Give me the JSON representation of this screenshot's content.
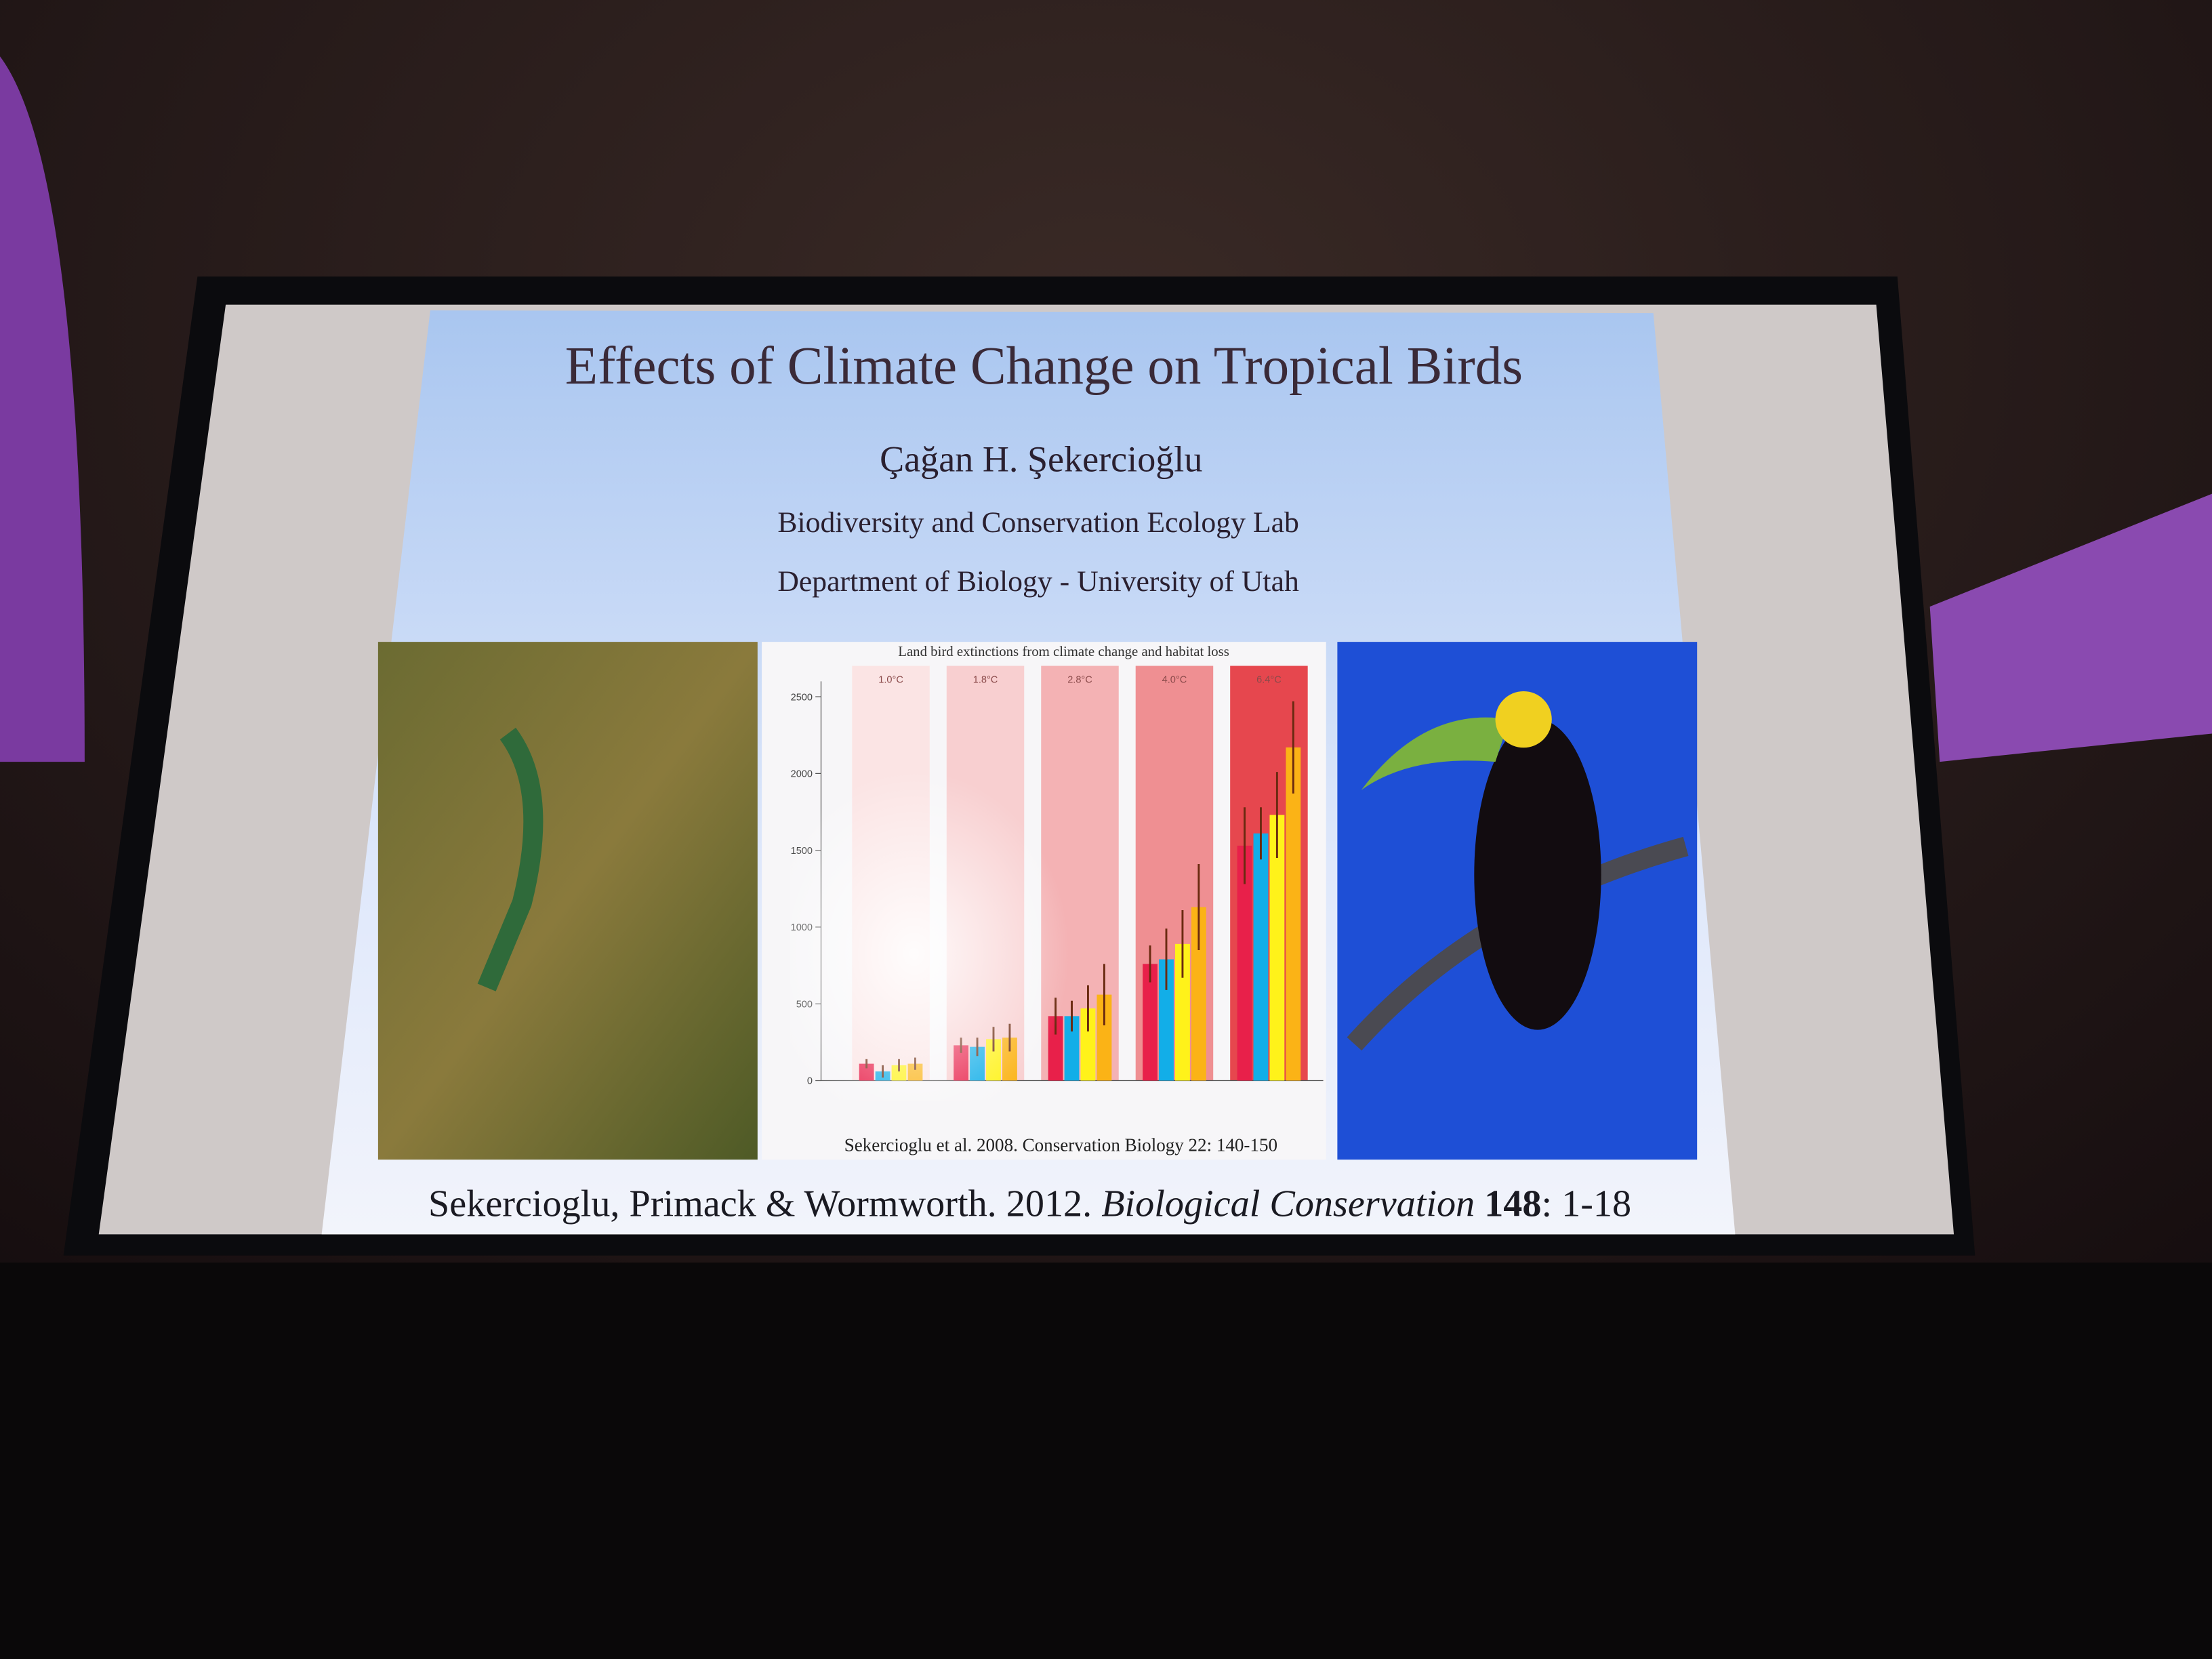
{
  "slide": {
    "title": "Effects of Climate Change on Tropical Birds",
    "author": "Çağan H. Şekercioğlu",
    "lab": "Biodiversity and Conservation Ecology Lab",
    "department": "Department of Biology - University of Utah",
    "citation": {
      "authors": "Sekercioglu, Primack & Wormworth. 2012.",
      "journal": "Biological Conservation",
      "volume": "148",
      "pages": ": 1-18"
    }
  },
  "chart_data": {
    "type": "bar",
    "title": "Land bird extinctions from climate change and habitat loss",
    "categories": [
      "1.0°C",
      "1.8°C",
      "2.8°C",
      "4.0°C",
      "6.4°C"
    ],
    "panel_colors": [
      "#fbe4e4",
      "#f8cfd0",
      "#f4b2b4",
      "#ef8f92",
      "#e6474e"
    ],
    "series": [
      {
        "color": "#e8204a",
        "values": [
          110,
          230,
          420,
          760,
          1530
        ],
        "errors": [
          30,
          50,
          120,
          120,
          250
        ]
      },
      {
        "color": "#12aee8",
        "values": [
          60,
          220,
          420,
          790,
          1610
        ],
        "errors": [
          40,
          60,
          100,
          200,
          170
        ]
      },
      {
        "color": "#fff21a",
        "values": [
          100,
          270,
          470,
          890,
          1730
        ],
        "errors": [
          40,
          80,
          150,
          220,
          280
        ]
      },
      {
        "color": "#fbb316",
        "values": [
          110,
          280,
          560,
          1130,
          2170
        ],
        "errors": [
          40,
          90,
          200,
          280,
          300
        ]
      }
    ],
    "ylim": [
      0,
      2600
    ],
    "yticks": [
      0,
      500,
      1000,
      1500,
      2000,
      2500
    ],
    "source": "Sekercioglu et al. 2008. Conservation Biology 22: 140-150"
  }
}
